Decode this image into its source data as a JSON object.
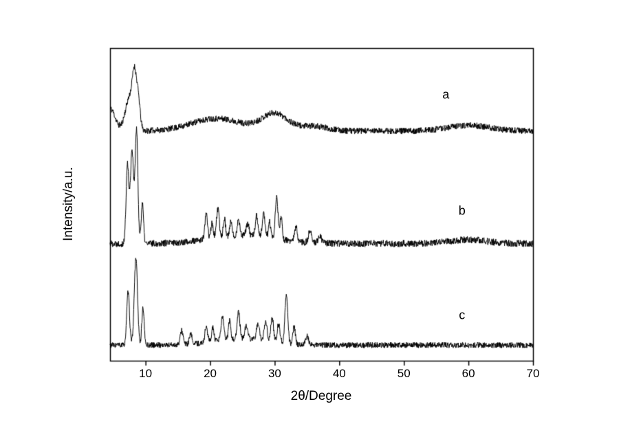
{
  "figure": {
    "background": "#ffffff",
    "line_color": "#000000"
  },
  "chart_data": {
    "type": "line",
    "title": "",
    "xlabel": "2θ/Degree",
    "ylabel": "Intensity/a.u.",
    "xlim": [
      4.5,
      70
    ],
    "ylim": [
      0,
      1
    ],
    "x_ticks": [
      10,
      20,
      30,
      40,
      50,
      60,
      70
    ],
    "y_ticks": [],
    "grid": false,
    "legend": "none",
    "description": "Powder XRD patterns of three samples labelled a, b and c, vertically offset; intensity in arbitrary units versus diffraction angle 2-theta",
    "series": [
      {
        "name": "a",
        "seed": 11,
        "baseline": 0.735,
        "noise": 0.01,
        "label": {
          "text": "a",
          "x": 56.5,
          "y": 0.85
        },
        "peaks": [
          {
            "x": 4.6,
            "h": 0.07,
            "w": 1.0
          },
          {
            "x": 7.6,
            "h": 0.11,
            "w": 1.0
          },
          {
            "x": 8.3,
            "h": 0.13,
            "w": 0.45
          },
          {
            "x": 8.9,
            "h": 0.08,
            "w": 0.4
          },
          {
            "x": 21.0,
            "h": 0.04,
            "w": 5.5
          },
          {
            "x": 30.0,
            "h": 0.055,
            "w": 2.8
          },
          {
            "x": 36.0,
            "h": 0.015,
            "w": 3.0
          },
          {
            "x": 60.0,
            "h": 0.018,
            "w": 4.5
          }
        ]
      },
      {
        "name": "b",
        "seed": 22,
        "baseline": 0.375,
        "noise": 0.011,
        "label": {
          "text": "b",
          "x": 59.0,
          "y": 0.48
        },
        "peaks": [
          {
            "x": 7.2,
            "h": 0.25,
            "w": 0.3
          },
          {
            "x": 7.9,
            "h": 0.3,
            "w": 0.35
          },
          {
            "x": 8.6,
            "h": 0.36,
            "w": 0.3
          },
          {
            "x": 9.5,
            "h": 0.13,
            "w": 0.25
          },
          {
            "x": 25.0,
            "h": 0.025,
            "w": 7.0
          },
          {
            "x": 19.4,
            "h": 0.08,
            "w": 0.3
          },
          {
            "x": 20.3,
            "h": 0.05,
            "w": 0.25
          },
          {
            "x": 21.2,
            "h": 0.09,
            "w": 0.3
          },
          {
            "x": 22.2,
            "h": 0.06,
            "w": 0.25
          },
          {
            "x": 23.2,
            "h": 0.045,
            "w": 0.25
          },
          {
            "x": 24.4,
            "h": 0.05,
            "w": 0.3
          },
          {
            "x": 25.8,
            "h": 0.04,
            "w": 0.3
          },
          {
            "x": 27.2,
            "h": 0.065,
            "w": 0.3
          },
          {
            "x": 28.3,
            "h": 0.075,
            "w": 0.3
          },
          {
            "x": 29.2,
            "h": 0.05,
            "w": 0.25
          },
          {
            "x": 30.3,
            "h": 0.135,
            "w": 0.3
          },
          {
            "x": 31.0,
            "h": 0.07,
            "w": 0.25
          },
          {
            "x": 33.3,
            "h": 0.045,
            "w": 0.3
          },
          {
            "x": 35.5,
            "h": 0.04,
            "w": 0.35
          },
          {
            "x": 37.0,
            "h": 0.02,
            "w": 0.4
          },
          {
            "x": 60.0,
            "h": 0.012,
            "w": 4.0
          }
        ]
      },
      {
        "name": "c",
        "seed": 33,
        "baseline": 0.05,
        "noise": 0.009,
        "label": {
          "text": "c",
          "x": 59.0,
          "y": 0.145
        },
        "peaks": [
          {
            "x": 7.3,
            "h": 0.17,
            "w": 0.3
          },
          {
            "x": 8.5,
            "h": 0.28,
            "w": 0.35
          },
          {
            "x": 9.6,
            "h": 0.12,
            "w": 0.25
          },
          {
            "x": 25.0,
            "h": 0.02,
            "w": 6.0
          },
          {
            "x": 15.6,
            "h": 0.045,
            "w": 0.3
          },
          {
            "x": 17.0,
            "h": 0.03,
            "w": 0.3
          },
          {
            "x": 19.4,
            "h": 0.05,
            "w": 0.3
          },
          {
            "x": 20.4,
            "h": 0.045,
            "w": 0.25
          },
          {
            "x": 21.9,
            "h": 0.075,
            "w": 0.3
          },
          {
            "x": 23.0,
            "h": 0.06,
            "w": 0.25
          },
          {
            "x": 24.4,
            "h": 0.085,
            "w": 0.3
          },
          {
            "x": 25.6,
            "h": 0.045,
            "w": 0.3
          },
          {
            "x": 27.4,
            "h": 0.055,
            "w": 0.3
          },
          {
            "x": 28.6,
            "h": 0.065,
            "w": 0.3
          },
          {
            "x": 29.6,
            "h": 0.075,
            "w": 0.3
          },
          {
            "x": 30.6,
            "h": 0.06,
            "w": 0.3
          },
          {
            "x": 31.8,
            "h": 0.16,
            "w": 0.3
          },
          {
            "x": 33.0,
            "h": 0.055,
            "w": 0.25
          },
          {
            "x": 35.0,
            "h": 0.03,
            "w": 0.3
          }
        ]
      }
    ]
  }
}
